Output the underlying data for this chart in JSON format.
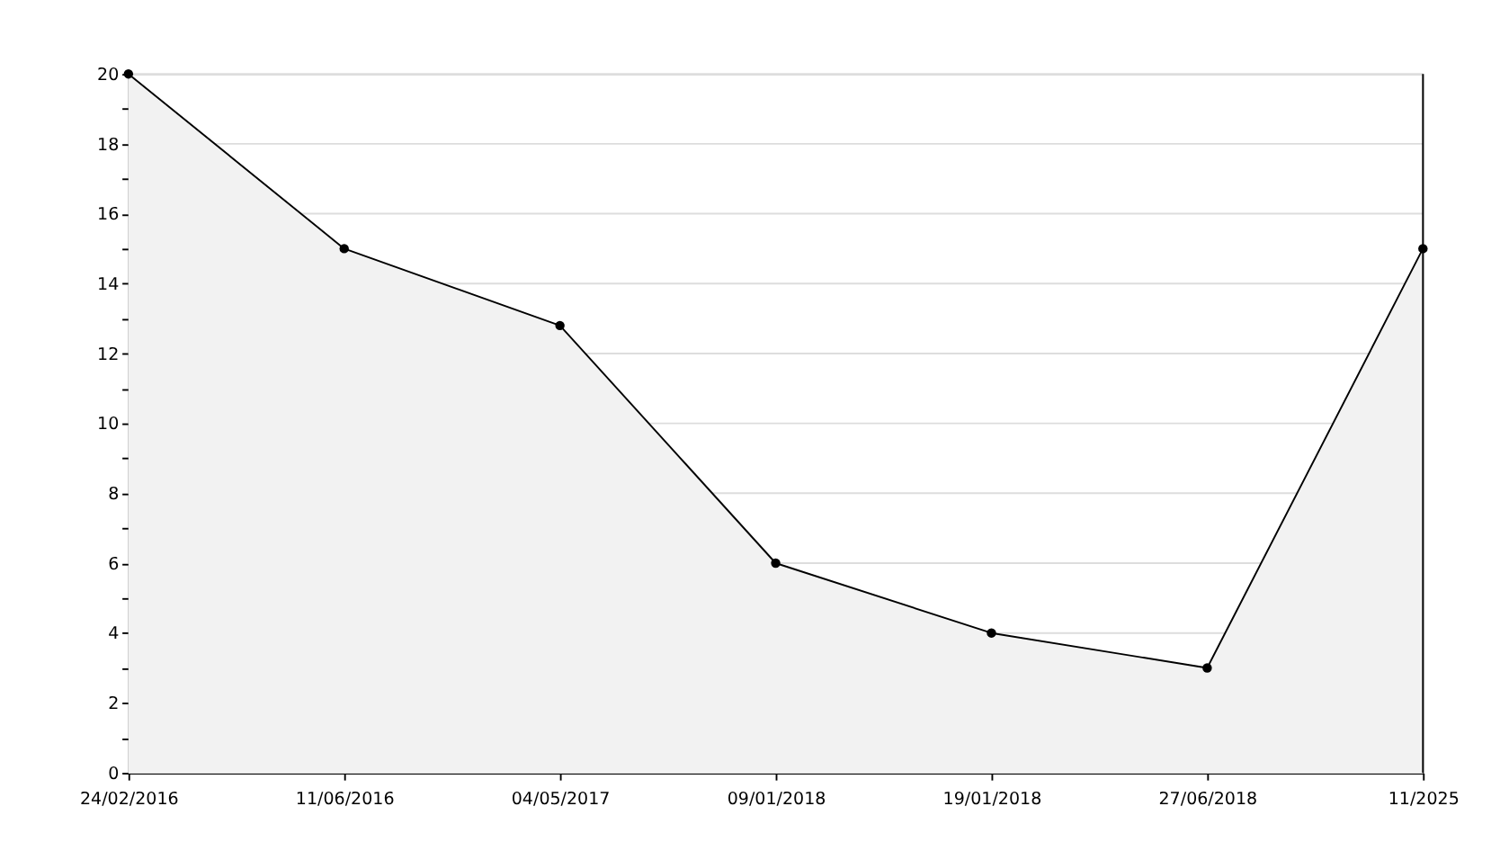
{
  "chart_data": {
    "type": "area",
    "categories": [
      "24/02/2016",
      "11/06/2016",
      "04/05/2017",
      "09/01/2018",
      "19/01/2018",
      "27/06/2018",
      "11/2025"
    ],
    "series": [
      {
        "color": "#f2f2f2",
        "values": [
          20,
          15,
          12.8,
          6,
          4,
          3,
          15
        ]
      }
    ],
    "ylim": [
      0,
      20
    ],
    "yticks": [
      0,
      {
        "value": 1,
        "label": null
      },
      2,
      {
        "value": 3,
        "label": null
      },
      4,
      {
        "value": 5,
        "label": null
      },
      6,
      {
        "value": 7,
        "label": null
      },
      8,
      {
        "value": 9,
        "label": null
      },
      10,
      {
        "value": 11,
        "label": null
      },
      12,
      {
        "value": 13,
        "label": null
      },
      14,
      {
        "value": 15,
        "label": null
      },
      16,
      {
        "value": 17,
        "label": null
      },
      18,
      {
        "value": 19,
        "label": null
      },
      20
    ],
    "grid": "y",
    "marker": "circle",
    "line_style": "solid"
  }
}
